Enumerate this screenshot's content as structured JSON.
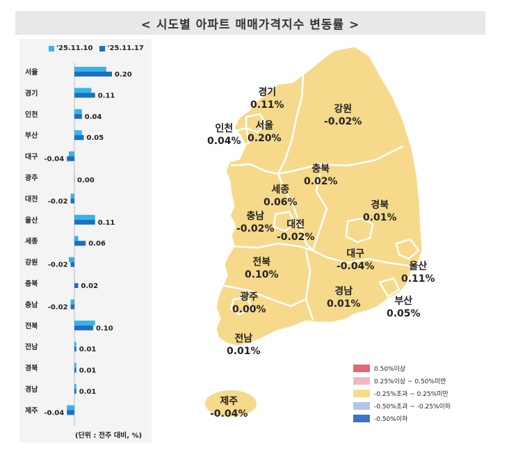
{
  "title": "< 시도별 아파트 매매가격지수 변동률 >",
  "legend": [
    {
      "label": "'25.11.10",
      "color": "#33b6e8"
    },
    {
      "label": "'25.11.17",
      "color": "#1b6fc4"
    }
  ],
  "unit_note": "(단위 : 전주 대비, %)",
  "chart_data": {
    "type": "bar",
    "categories": [
      "서울",
      "경기",
      "인천",
      "부산",
      "대구",
      "광주",
      "대전",
      "울산",
      "세종",
      "강원",
      "충북",
      "충남",
      "전북",
      "전남",
      "경북",
      "경남",
      "제주"
    ],
    "series": [
      {
        "name": "'25.11.10",
        "values": [
          0.17,
          0.09,
          0.04,
          0.04,
          -0.03,
          0.0,
          -0.02,
          0.11,
          0.02,
          -0.03,
          0.0,
          -0.02,
          0.11,
          0.01,
          0.01,
          0.01,
          -0.04
        ]
      },
      {
        "name": "'25.11.17",
        "values": [
          0.2,
          0.11,
          0.04,
          0.05,
          -0.04,
          0.0,
          -0.02,
          0.11,
          0.06,
          -0.02,
          0.02,
          -0.02,
          0.1,
          0.01,
          0.01,
          0.01,
          -0.04
        ]
      }
    ],
    "data_labels": [
      "0.20",
      "0.11",
      "0.04",
      "0.05",
      "-0.04",
      "0.00",
      "-0.02",
      "0.11",
      "0.06",
      "-0.02",
      "0.02",
      "-0.02",
      "0.10",
      "0.01",
      "0.01",
      "0.01",
      "-0.04"
    ],
    "orientation": "horizontal"
  },
  "map_labels": [
    {
      "name": "경기",
      "value": "0.11%"
    },
    {
      "name": "강원",
      "value": "-0.02%"
    },
    {
      "name": "인천",
      "value": "0.04%"
    },
    {
      "name": "서울",
      "value": "0.20%"
    },
    {
      "name": "충북",
      "value": "0.02%"
    },
    {
      "name": "세종",
      "value": "0.06%"
    },
    {
      "name": "경북",
      "value": "0.01%"
    },
    {
      "name": "충남",
      "value": "-0.02%"
    },
    {
      "name": "대전",
      "value": "-0.02%"
    },
    {
      "name": "대구",
      "value": "-0.04%"
    },
    {
      "name": "전북",
      "value": "0.10%"
    },
    {
      "name": "울산",
      "value": "0.11%"
    },
    {
      "name": "광주",
      "value": "0.00%"
    },
    {
      "name": "경남",
      "value": "0.01%"
    },
    {
      "name": "부산",
      "value": "0.05%"
    },
    {
      "name": "전남",
      "value": "0.01%"
    },
    {
      "name": "제주",
      "value": "-0.04%"
    }
  ],
  "scale_legend": [
    {
      "label": "0.50%이상",
      "color": "#e06b74"
    },
    {
      "label": "0.25%이상 ~ 0.50%미만",
      "color": "#f2b8bf"
    },
    {
      "label": "-0.25%초과 ~ 0.25%미만",
      "color": "#f6dc8e"
    },
    {
      "label": "-0.50%초과 ~ -0.25%이하",
      "color": "#b3c6e8"
    },
    {
      "label": "-0.50%이하",
      "color": "#3f6fcf"
    }
  ],
  "map_fill": "#f6d98a"
}
